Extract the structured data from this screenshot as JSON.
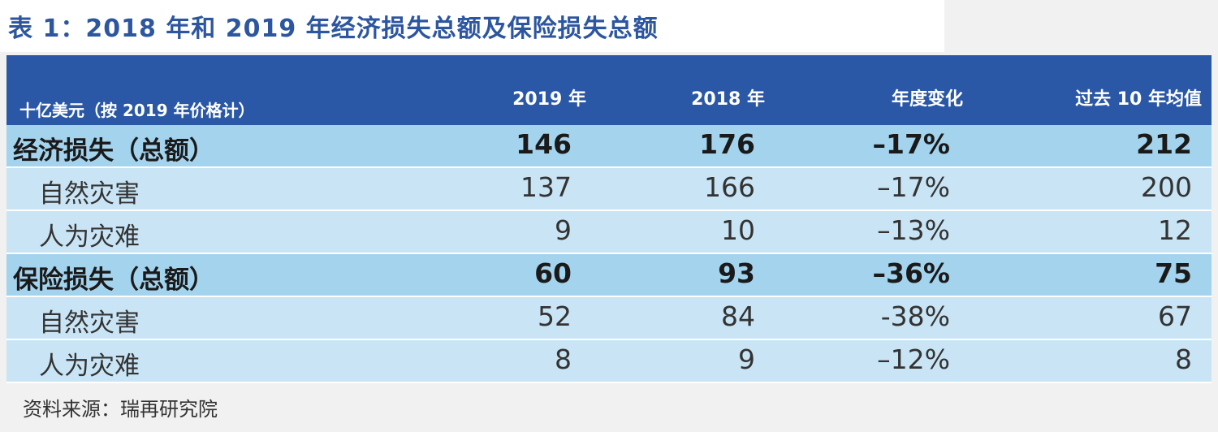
{
  "title": "表 1：2018 年和 2019 年经济损失总额及保险损失总额",
  "table": {
    "unit_label": "十亿美元（按 2019 年价格计）",
    "columns": [
      "2019 年",
      "2018 年",
      "年度变化",
      "过去 10 年均值"
    ],
    "rows": [
      {
        "label": "经济损失（总额）",
        "values": [
          "146",
          "176",
          "–17%",
          "212"
        ]
      },
      {
        "label": "自然灾害",
        "values": [
          "137",
          "166",
          "–17%",
          "200"
        ]
      },
      {
        "label": "人为灾难",
        "values": [
          "9",
          "10",
          "–13%",
          "12"
        ]
      },
      {
        "label": "保险损失（总额）",
        "values": [
          "60",
          "93",
          "–36%",
          "75"
        ]
      },
      {
        "label": "自然灾害",
        "values": [
          "52",
          "84",
          "-38%",
          "67"
        ]
      },
      {
        "label": "人为灾难",
        "values": [
          "8",
          "9",
          "–12%",
          "8"
        ]
      }
    ]
  },
  "source": "资料来源：瑞再研究院",
  "colors": {
    "title": "#2d56a0",
    "header_bg": "#2a58a6",
    "total_row_bg": "#a4d3ee",
    "sub_row_bg": "#c9e5f5"
  }
}
